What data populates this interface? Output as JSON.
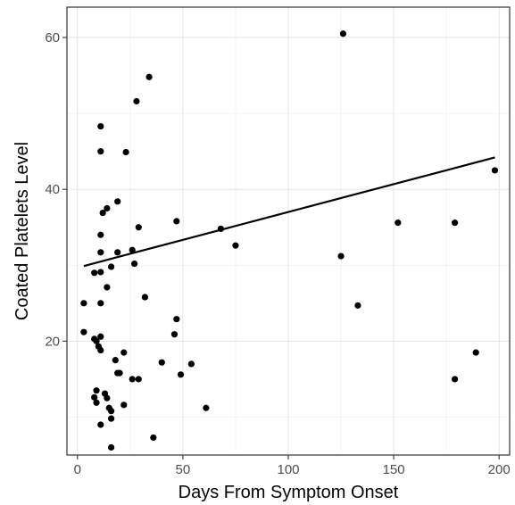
{
  "chart_data": {
    "type": "scatter",
    "title": "",
    "xlabel": "Days From Symptom Onset",
    "ylabel": "Coated Platelets Level",
    "xlim": [
      -5,
      205
    ],
    "ylim": [
      5,
      64
    ],
    "x_ticks": [
      0,
      50,
      100,
      150,
      200
    ],
    "y_ticks": [
      20,
      40,
      60
    ],
    "x_tick_labels": [
      "0",
      "50",
      "100",
      "150",
      "200"
    ],
    "y_tick_labels": [
      "20",
      "40",
      "60"
    ],
    "grid": true,
    "legend": "none",
    "point_color": "#000000",
    "trendline": {
      "x": [
        3,
        198
      ],
      "y": [
        29.9,
        44.2
      ]
    },
    "points": [
      [
        126,
        60.5
      ],
      [
        34,
        54.8
      ],
      [
        28,
        51.6
      ],
      [
        11,
        48.3
      ],
      [
        11,
        45.0
      ],
      [
        23,
        44.9
      ],
      [
        198,
        42.5
      ],
      [
        19,
        38.4
      ],
      [
        14,
        37.5
      ],
      [
        12,
        36.9
      ],
      [
        11,
        34.0
      ],
      [
        47,
        35.8
      ],
      [
        29,
        35.0
      ],
      [
        68,
        34.8
      ],
      [
        152,
        35.6
      ],
      [
        179,
        35.6
      ],
      [
        75,
        32.6
      ],
      [
        11,
        31.7
      ],
      [
        19,
        31.7
      ],
      [
        26,
        32.0
      ],
      [
        125,
        31.2
      ],
      [
        27,
        30.2
      ],
      [
        16,
        29.8
      ],
      [
        8,
        29.0
      ],
      [
        11,
        29.1
      ],
      [
        14,
        27.1
      ],
      [
        3,
        25.0
      ],
      [
        11,
        25.0
      ],
      [
        32,
        25.8
      ],
      [
        133,
        24.7
      ],
      [
        47,
        22.9
      ],
      [
        3,
        21.2
      ],
      [
        8,
        20.3
      ],
      [
        9,
        20.0
      ],
      [
        11,
        20.6
      ],
      [
        46,
        20.9
      ],
      [
        10,
        19.3
      ],
      [
        11,
        18.8
      ],
      [
        22,
        18.5
      ],
      [
        189,
        18.5
      ],
      [
        18,
        17.5
      ],
      [
        40,
        17.2
      ],
      [
        54,
        17.0
      ],
      [
        19,
        15.8
      ],
      [
        20,
        15.8
      ],
      [
        26,
        15.0
      ],
      [
        29,
        15.0
      ],
      [
        49,
        15.6
      ],
      [
        179,
        15.0
      ],
      [
        9,
        13.5
      ],
      [
        13,
        13.1
      ],
      [
        8,
        12.6
      ],
      [
        14,
        12.5
      ],
      [
        9,
        11.9
      ],
      [
        22,
        11.6
      ],
      [
        15,
        11.2
      ],
      [
        16,
        10.8
      ],
      [
        61,
        11.2
      ],
      [
        16,
        9.8
      ],
      [
        11,
        9.0
      ],
      [
        36,
        7.3
      ],
      [
        16,
        6.0
      ]
    ]
  }
}
